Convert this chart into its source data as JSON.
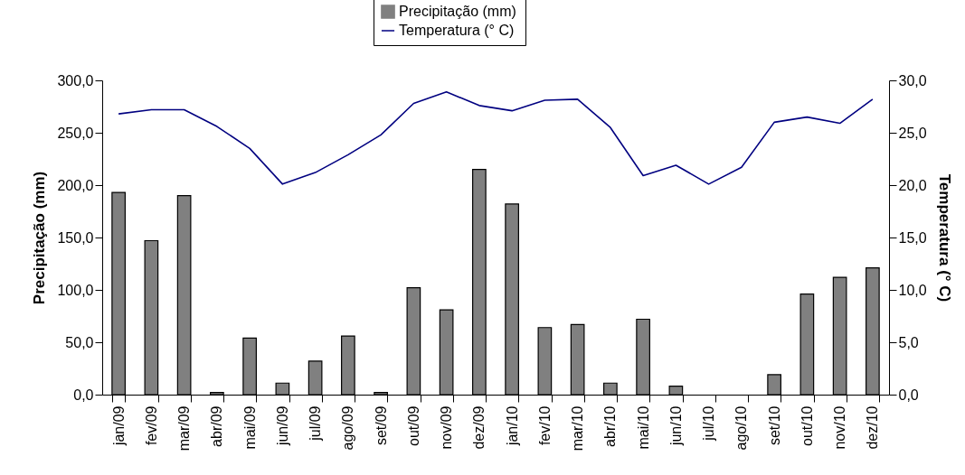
{
  "chart_data": {
    "type": "bar",
    "categories": [
      "jan/09",
      "fev/09",
      "mar/09",
      "abr/09",
      "mai/09",
      "jun/09",
      "jul/09",
      "ago/09",
      "set/09",
      "out/09",
      "nov/09",
      "dez/09",
      "jan/10",
      "fev/10",
      "mar/10",
      "abr/10",
      "mai/10",
      "jun/10",
      "jul/10",
      "ago/10",
      "set/10",
      "out/10",
      "nov/10",
      "dez/10"
    ],
    "series": [
      {
        "name": "Precipitação (mm)",
        "color": "#808080",
        "values": [
          193,
          147,
          190,
          2,
          54,
          11,
          32,
          56,
          2,
          102,
          81,
          215,
          182,
          64,
          67,
          11,
          72,
          8,
          null,
          null,
          19,
          96,
          112,
          121
        ]
      },
      {
        "name": "Temperatura  (° C)",
        "type": "line",
        "axis": "y2",
        "color": "#000080",
        "values": [
          26.8,
          27.2,
          27.2,
          25.6,
          23.5,
          20.1,
          21.2,
          22.9,
          24.8,
          27.8,
          28.9,
          27.6,
          27.1,
          28.1,
          28.2,
          25.5,
          20.9,
          21.9,
          20.1,
          21.7,
          26.0,
          26.5,
          25.9,
          28.2
        ]
      }
    ],
    "ylabel": "Precipitação (mm)",
    "y2label": "Temperatura  (° C)",
    "ylim": [
      0,
      300
    ],
    "yticks": [
      {
        "value": 0,
        "label": "0,0"
      },
      {
        "value": 50,
        "label": "50,0"
      },
      {
        "value": 100,
        "label": "100,0"
      },
      {
        "value": 150,
        "label": "150,0"
      },
      {
        "value": 200,
        "label": "200,0"
      },
      {
        "value": 250,
        "label": "250,0"
      },
      {
        "value": 300,
        "label": "300,0"
      }
    ],
    "y2lim": [
      0,
      30
    ],
    "y2ticks": [
      {
        "value": 0,
        "label": "0,0"
      },
      {
        "value": 5,
        "label": "5,0"
      },
      {
        "value": 10,
        "label": "10,0"
      },
      {
        "value": 15,
        "label": "15,0"
      },
      {
        "value": 20,
        "label": "20,0"
      },
      {
        "value": 25,
        "label": "25,0"
      },
      {
        "value": 30,
        "label": "30,0"
      }
    ],
    "legend": "top"
  }
}
